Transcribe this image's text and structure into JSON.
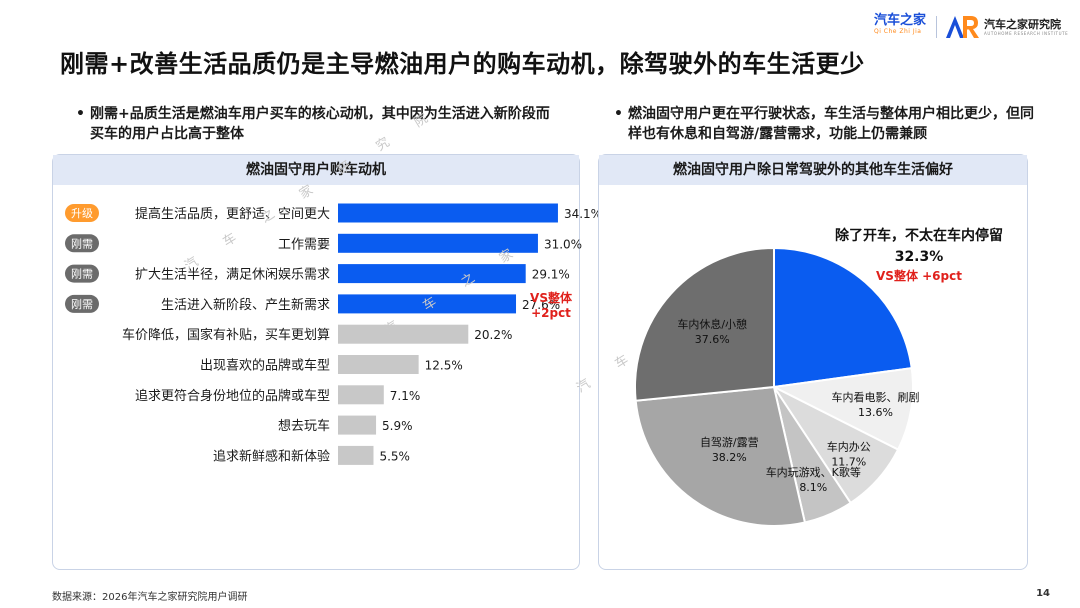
{
  "header": {
    "logo_autohome": "汽车之家",
    "logo_autohome_sub": "Qi Che Zhi Jia",
    "logo_institute": "汽车之家研究院",
    "logo_institute_sub": "AUTOHOME RESEARCH INSTITUTE"
  },
  "title": "刚需+改善生活品质仍是主导燃油用户的购车动机，除驾驶外的车生活更少",
  "bullets": {
    "left": "刚需+品质生活是燃油车用户买车的核心动机，其中因为生活进入新阶段而买车的用户占比高于整体",
    "right": "燃油固守用户更在平行驶状态，车生活与整体用户相比更少，但同样也有休息和自驾游/露营需求，功能上仍需兼顾"
  },
  "watermark": [
    "汽 车 之 家 研 究 院",
    "汽 车 之 家",
    "汽 车"
  ],
  "colors": {
    "blue": "#0a5cf0",
    "gray": "#c8c8c8",
    "red": "#e0211c",
    "dark_tag": "#6b6b6b",
    "orange_tag": "#ff9b2e"
  },
  "chart_data": [
    {
      "type": "bar",
      "orientation": "horizontal",
      "title": "燃油固守用户购车动机",
      "categories": [
        "提高生活品质，更舒适、空间更大",
        "工作需要",
        "扩大生活半径，满足休闲娱乐需求",
        "生活进入新阶段、产生新需求",
        "车价降低，国家有补贴，买车更划算",
        "出现喜欢的品牌或车型",
        "追求更符合身份地位的品牌或车型",
        "想去玩车",
        "追求新鲜感和新体验"
      ],
      "values": [
        34.1,
        31.0,
        29.1,
        27.6,
        20.2,
        12.5,
        7.1,
        5.9,
        5.5
      ],
      "value_labels": [
        "34.1%",
        "31.0%",
        "29.1%",
        "27.6%",
        "20.2%",
        "12.5%",
        "7.1%",
        "5.9%",
        "5.5%"
      ],
      "tags": [
        "升级",
        "刚需",
        "刚需",
        "刚需",
        "",
        "",
        "",
        "",
        ""
      ],
      "highlight_count": 4,
      "annotation": {
        "index": 3,
        "line1": "VS整体",
        "line2": "+2pct"
      }
    },
    {
      "type": "pie",
      "title": "燃油固守用户除日常驾驶外的其他车生活偏好",
      "labels": [
        "除了开车，不太在车内停留",
        "车内看电影、刷剧",
        "车内办公",
        "车内玩游戏、K歌等",
        "自驾游/露营",
        "车内休息/小憩"
      ],
      "values": [
        32.3,
        13.6,
        11.7,
        8.1,
        38.2,
        37.6
      ],
      "value_labels": [
        "32.3%",
        "13.6%",
        "11.7%",
        "8.1%",
        "38.2%",
        "37.6%"
      ],
      "colors": [
        "#0a5cf0",
        "#f0f0f0",
        "#dcdcdc",
        "#c4c4c4",
        "#a6a6a6",
        "#6e6e6e"
      ],
      "annotation": {
        "index": 0,
        "text": "VS整体 +6pct"
      }
    }
  ],
  "footer": {
    "source": "数据来源：2026年汽车之家研究院用户调研",
    "page": "14"
  }
}
